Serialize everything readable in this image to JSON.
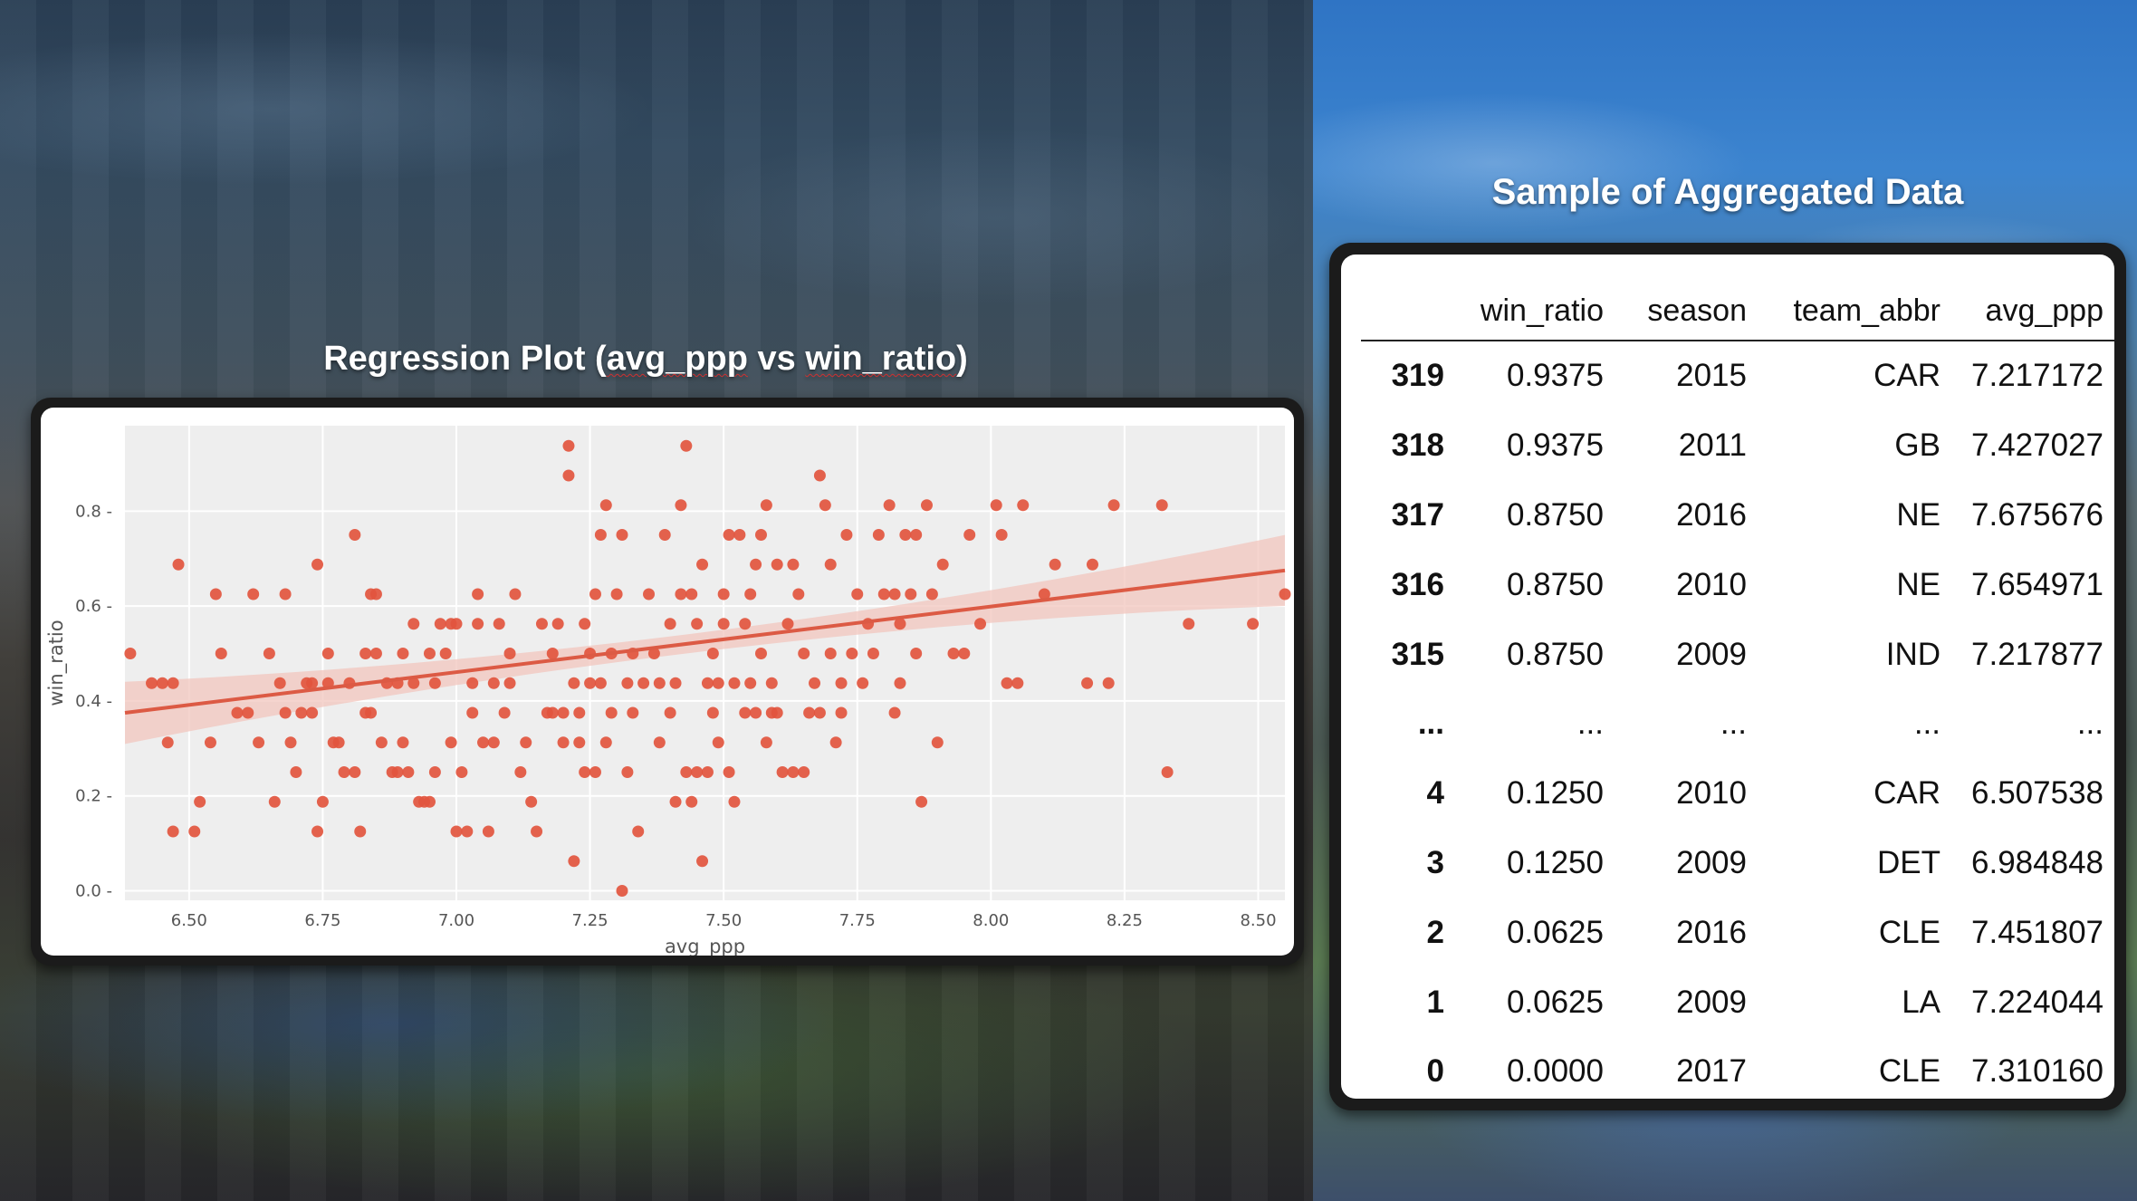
{
  "chart_heading": {
    "prefix": "Regression Plot (",
    "x": "avg_ppp",
    "mid": " vs ",
    "y": "win_ratio",
    "suffix": ")"
  },
  "table_heading": "Sample of Aggregated Data",
  "colors": {
    "point": "#e2553e",
    "line": "#dc5a44",
    "band": "#f2c6bd",
    "plot_bg": "#eeeeee",
    "grid": "#ffffff"
  },
  "chart_data": {
    "type": "scatter",
    "title": "",
    "xlabel": "avg_ppp",
    "ylabel": "win_ratio",
    "xlim": [
      6.38,
      8.55
    ],
    "ylim": [
      -0.02,
      0.98
    ],
    "xticks": [
      "6.50",
      "6.75",
      "7.00",
      "7.25",
      "7.50",
      "7.75",
      "8.00",
      "8.25",
      "8.50"
    ],
    "yticks": [
      "0.0",
      "0.2",
      "0.4",
      "0.6",
      "0.8"
    ],
    "grid": true,
    "regression": {
      "x0": 6.38,
      "y0": 0.375,
      "x1": 8.55,
      "y1": 0.675,
      "band_halfwidth_ends": 0.07,
      "band_halfwidth_mid": 0.02
    },
    "points": [
      [
        6.39,
        0.5
      ],
      [
        6.43,
        0.4375
      ],
      [
        6.45,
        0.4375
      ],
      [
        6.47,
        0.4375
      ],
      [
        6.46,
        0.3125
      ],
      [
        6.47,
        0.125
      ],
      [
        6.48,
        0.6875
      ],
      [
        6.51,
        0.125
      ],
      [
        6.52,
        0.1875
      ],
      [
        6.54,
        0.3125
      ],
      [
        6.55,
        0.625
      ],
      [
        6.56,
        0.5
      ],
      [
        6.59,
        0.375
      ],
      [
        6.61,
        0.375
      ],
      [
        6.62,
        0.625
      ],
      [
        6.63,
        0.3125
      ],
      [
        6.65,
        0.5
      ],
      [
        6.66,
        0.1875
      ],
      [
        6.67,
        0.4375
      ],
      [
        6.68,
        0.375
      ],
      [
        6.68,
        0.625
      ],
      [
        6.69,
        0.3125
      ],
      [
        6.7,
        0.25
      ],
      [
        6.71,
        0.375
      ],
      [
        6.72,
        0.4375
      ],
      [
        6.73,
        0.4375
      ],
      [
        6.73,
        0.375
      ],
      [
        6.74,
        0.125
      ],
      [
        6.74,
        0.6875
      ],
      [
        6.75,
        0.1875
      ],
      [
        6.76,
        0.5
      ],
      [
        6.76,
        0.4375
      ],
      [
        6.77,
        0.3125
      ],
      [
        6.78,
        0.3125
      ],
      [
        6.79,
        0.25
      ],
      [
        6.8,
        0.4375
      ],
      [
        6.81,
        0.25
      ],
      [
        6.81,
        0.75
      ],
      [
        6.82,
        0.125
      ],
      [
        6.83,
        0.5
      ],
      [
        6.83,
        0.375
      ],
      [
        6.84,
        0.375
      ],
      [
        6.84,
        0.625
      ],
      [
        6.85,
        0.5
      ],
      [
        6.85,
        0.625
      ],
      [
        6.86,
        0.3125
      ],
      [
        6.87,
        0.4375
      ],
      [
        6.88,
        0.25
      ],
      [
        6.89,
        0.25
      ],
      [
        6.89,
        0.4375
      ],
      [
        6.9,
        0.5
      ],
      [
        6.9,
        0.3125
      ],
      [
        6.91,
        0.25
      ],
      [
        6.92,
        0.4375
      ],
      [
        6.92,
        0.5625
      ],
      [
        6.93,
        0.1875
      ],
      [
        6.94,
        0.1875
      ],
      [
        6.95,
        0.1875
      ],
      [
        6.95,
        0.5
      ],
      [
        6.96,
        0.4375
      ],
      [
        6.96,
        0.25
      ],
      [
        6.97,
        0.5625
      ],
      [
        6.98,
        0.5
      ],
      [
        6.99,
        0.3125
      ],
      [
        6.99,
        0.5625
      ],
      [
        7.0,
        0.125
      ],
      [
        7.0,
        0.5625
      ],
      [
        7.01,
        0.25
      ],
      [
        7.02,
        0.125
      ],
      [
        7.03,
        0.375
      ],
      [
        7.03,
        0.4375
      ],
      [
        7.04,
        0.5625
      ],
      [
        7.04,
        0.625
      ],
      [
        7.05,
        0.3125
      ],
      [
        7.06,
        0.125
      ],
      [
        7.07,
        0.4375
      ],
      [
        7.07,
        0.3125
      ],
      [
        7.08,
        0.5625
      ],
      [
        7.09,
        0.375
      ],
      [
        7.1,
        0.4375
      ],
      [
        7.1,
        0.5
      ],
      [
        7.11,
        0.625
      ],
      [
        7.12,
        0.25
      ],
      [
        7.13,
        0.3125
      ],
      [
        7.14,
        0.1875
      ],
      [
        7.15,
        0.125
      ],
      [
        7.16,
        0.5625
      ],
      [
        7.17,
        0.375
      ],
      [
        7.18,
        0.375
      ],
      [
        7.18,
        0.5
      ],
      [
        7.19,
        0.5625
      ],
      [
        7.2,
        0.3125
      ],
      [
        7.2,
        0.375
      ],
      [
        7.21,
        0.9375
      ],
      [
        7.21,
        0.875
      ],
      [
        7.22,
        0.0625
      ],
      [
        7.22,
        0.4375
      ],
      [
        7.23,
        0.375
      ],
      [
        7.23,
        0.3125
      ],
      [
        7.24,
        0.25
      ],
      [
        7.24,
        0.5625
      ],
      [
        7.25,
        0.4375
      ],
      [
        7.25,
        0.5
      ],
      [
        7.26,
        0.625
      ],
      [
        7.26,
        0.25
      ],
      [
        7.27,
        0.4375
      ],
      [
        7.27,
        0.75
      ],
      [
        7.28,
        0.3125
      ],
      [
        7.28,
        0.8125
      ],
      [
        7.29,
        0.5
      ],
      [
        7.29,
        0.375
      ],
      [
        7.3,
        0.625
      ],
      [
        7.31,
        0.0
      ],
      [
        7.31,
        0.75
      ],
      [
        7.32,
        0.4375
      ],
      [
        7.32,
        0.25
      ],
      [
        7.33,
        0.5
      ],
      [
        7.33,
        0.375
      ],
      [
        7.34,
        0.125
      ],
      [
        7.35,
        0.4375
      ],
      [
        7.36,
        0.625
      ],
      [
        7.37,
        0.5
      ],
      [
        7.38,
        0.3125
      ],
      [
        7.38,
        0.4375
      ],
      [
        7.39,
        0.75
      ],
      [
        7.4,
        0.5625
      ],
      [
        7.4,
        0.375
      ],
      [
        7.41,
        0.4375
      ],
      [
        7.41,
        0.1875
      ],
      [
        7.42,
        0.625
      ],
      [
        7.42,
        0.8125
      ],
      [
        7.43,
        0.9375
      ],
      [
        7.43,
        0.25
      ],
      [
        7.44,
        0.625
      ],
      [
        7.44,
        0.1875
      ],
      [
        7.45,
        0.5625
      ],
      [
        7.45,
        0.25
      ],
      [
        7.46,
        0.0625
      ],
      [
        7.46,
        0.6875
      ],
      [
        7.47,
        0.25
      ],
      [
        7.47,
        0.4375
      ],
      [
        7.48,
        0.5
      ],
      [
        7.48,
        0.375
      ],
      [
        7.49,
        0.4375
      ],
      [
        7.49,
        0.3125
      ],
      [
        7.5,
        0.5625
      ],
      [
        7.5,
        0.625
      ],
      [
        7.51,
        0.25
      ],
      [
        7.51,
        0.75
      ],
      [
        7.52,
        0.4375
      ],
      [
        7.52,
        0.1875
      ],
      [
        7.53,
        0.75
      ],
      [
        7.54,
        0.375
      ],
      [
        7.54,
        0.5625
      ],
      [
        7.55,
        0.625
      ],
      [
        7.55,
        0.4375
      ],
      [
        7.56,
        0.375
      ],
      [
        7.56,
        0.6875
      ],
      [
        7.57,
        0.75
      ],
      [
        7.57,
        0.5
      ],
      [
        7.58,
        0.3125
      ],
      [
        7.58,
        0.8125
      ],
      [
        7.59,
        0.375
      ],
      [
        7.59,
        0.4375
      ],
      [
        7.6,
        0.6875
      ],
      [
        7.6,
        0.375
      ],
      [
        7.61,
        0.25
      ],
      [
        7.62,
        0.5625
      ],
      [
        7.63,
        0.6875
      ],
      [
        7.63,
        0.25
      ],
      [
        7.64,
        0.625
      ],
      [
        7.65,
        0.25
      ],
      [
        7.65,
        0.5
      ],
      [
        7.66,
        0.375
      ],
      [
        7.67,
        0.4375
      ],
      [
        7.68,
        0.875
      ],
      [
        7.68,
        0.375
      ],
      [
        7.69,
        0.8125
      ],
      [
        7.7,
        0.5
      ],
      [
        7.7,
        0.6875
      ],
      [
        7.71,
        0.3125
      ],
      [
        7.72,
        0.4375
      ],
      [
        7.72,
        0.375
      ],
      [
        7.73,
        0.75
      ],
      [
        7.74,
        0.5
      ],
      [
        7.75,
        0.625
      ],
      [
        7.76,
        0.4375
      ],
      [
        7.77,
        0.5625
      ],
      [
        7.78,
        0.5
      ],
      [
        7.79,
        0.75
      ],
      [
        7.8,
        0.625
      ],
      [
        7.81,
        0.8125
      ],
      [
        7.82,
        0.625
      ],
      [
        7.82,
        0.375
      ],
      [
        7.83,
        0.4375
      ],
      [
        7.83,
        0.5625
      ],
      [
        7.84,
        0.75
      ],
      [
        7.85,
        0.625
      ],
      [
        7.86,
        0.5
      ],
      [
        7.86,
        0.75
      ],
      [
        7.87,
        0.1875
      ],
      [
        7.88,
        0.8125
      ],
      [
        7.89,
        0.625
      ],
      [
        7.9,
        0.3125
      ],
      [
        7.91,
        0.6875
      ],
      [
        7.93,
        0.5
      ],
      [
        7.95,
        0.5
      ],
      [
        7.96,
        0.75
      ],
      [
        7.98,
        0.5625
      ],
      [
        8.01,
        0.8125
      ],
      [
        8.02,
        0.75
      ],
      [
        8.03,
        0.4375
      ],
      [
        8.05,
        0.4375
      ],
      [
        8.06,
        0.8125
      ],
      [
        8.1,
        0.625
      ],
      [
        8.12,
        0.6875
      ],
      [
        8.18,
        0.4375
      ],
      [
        8.19,
        0.6875
      ],
      [
        8.22,
        0.4375
      ],
      [
        8.23,
        0.8125
      ],
      [
        8.32,
        0.8125
      ],
      [
        8.33,
        0.25
      ],
      [
        8.37,
        0.5625
      ],
      [
        8.49,
        0.5625
      ],
      [
        8.55,
        0.625
      ]
    ]
  },
  "table": {
    "columns": [
      "",
      "win_ratio",
      "season",
      "team_abbr",
      "avg_ppp"
    ],
    "rows": [
      [
        "319",
        "0.9375",
        "2015",
        "CAR",
        "7.217172"
      ],
      [
        "318",
        "0.9375",
        "2011",
        "GB",
        "7.427027"
      ],
      [
        "317",
        "0.8750",
        "2016",
        "NE",
        "7.675676"
      ],
      [
        "316",
        "0.8750",
        "2010",
        "NE",
        "7.654971"
      ],
      [
        "315",
        "0.8750",
        "2009",
        "IND",
        "7.217877"
      ],
      [
        "...",
        "...",
        "...",
        "...",
        "..."
      ],
      [
        "4",
        "0.1250",
        "2010",
        "CAR",
        "6.507538"
      ],
      [
        "3",
        "0.1250",
        "2009",
        "DET",
        "6.984848"
      ],
      [
        "2",
        "0.0625",
        "2016",
        "CLE",
        "7.451807"
      ],
      [
        "1",
        "0.0625",
        "2009",
        "LA",
        "7.224044"
      ],
      [
        "0",
        "0.0000",
        "2017",
        "CLE",
        "7.310160"
      ]
    ]
  }
}
